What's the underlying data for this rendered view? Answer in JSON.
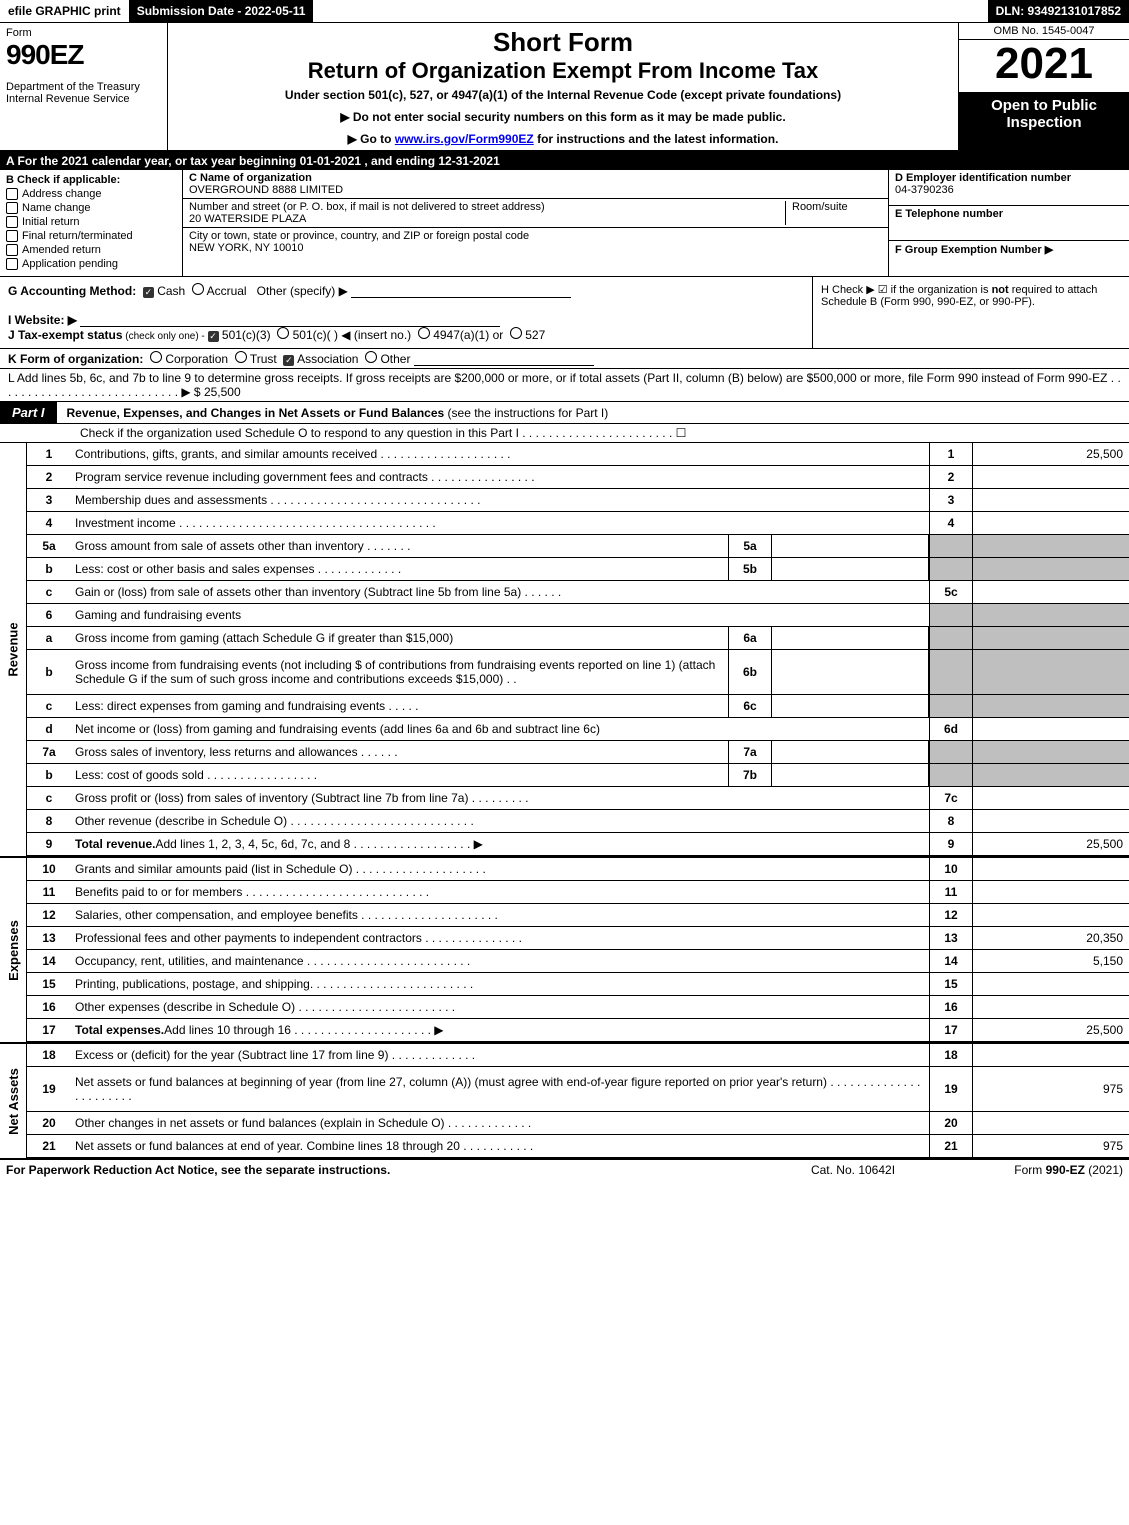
{
  "top_bar": {
    "efile": "efile GRAPHIC print",
    "submission_label": "Submission Date - 2022-05-11",
    "dln_label": "DLN: 93492131017852"
  },
  "header": {
    "form_word": "Form",
    "form_number": "990EZ",
    "dept": "Department of the Treasury\nInternal Revenue Service",
    "short_form": "Short Form",
    "title": "Return of Organization Exempt From Income Tax",
    "subtitle": "Under section 501(c), 527, or 4947(a)(1) of the Internal Revenue Code (except private foundations)",
    "note1": "▶ Do not enter social security numbers on this form as it may be made public.",
    "note2_pre": "▶ Go to ",
    "note2_link": "www.irs.gov/Form990EZ",
    "note2_post": " for instructions and the latest information.",
    "omb": "OMB No. 1545-0047",
    "year": "2021",
    "open": "Open to Public Inspection"
  },
  "row_a": "A  For the 2021 calendar year, or tax year beginning 01-01-2021 , and ending 12-31-2021",
  "section_b": {
    "label": "B  Check if applicable:",
    "items": [
      "Address change",
      "Name change",
      "Initial return",
      "Final return/terminated",
      "Amended return",
      "Application pending"
    ]
  },
  "section_c": {
    "name_label": "C Name of organization",
    "name": "OVERGROUND 8888 LIMITED",
    "addr_label": "Number and street (or P. O. box, if mail is not delivered to street address)",
    "addr": "20 WATERSIDE PLAZA",
    "room_label": "Room/suite",
    "city_label": "City or town, state or province, country, and ZIP or foreign postal code",
    "city": "NEW YORK, NY  10010"
  },
  "section_d": {
    "label": "D Employer identification number",
    "value": "04-3790236"
  },
  "section_e": {
    "label": "E Telephone number",
    "value": ""
  },
  "section_f": {
    "label": "F Group Exemption Number  ▶",
    "value": ""
  },
  "section_g": {
    "label": "G Accounting Method:",
    "cash": "Cash",
    "accrual": "Accrual",
    "other": "Other (specify) ▶"
  },
  "section_h": {
    "text1": "H  Check ▶ ☑ if the organization is ",
    "not": "not",
    "text2": " required to attach Schedule B (Form 990, 990-EZ, or 990-PF)."
  },
  "section_i": {
    "label": "I Website: ▶"
  },
  "section_j": {
    "label": "J Tax-exempt status",
    "sub": " (check only one) - ",
    "c3": "501(c)(3)",
    "c": "501(c)(  ) ◀ (insert no.)",
    "a4947": "4947(a)(1) or",
    "s527": "527"
  },
  "section_k": {
    "label": "K Form of organization:",
    "corp": "Corporation",
    "trust": "Trust",
    "assoc": "Association",
    "other": "Other"
  },
  "section_l": {
    "text": "L Add lines 5b, 6c, and 7b to line 9 to determine gross receipts. If gross receipts are $200,000 or more, or if total assets (Part II, column (B) below) are $500,000 or more, file Form 990 instead of Form 990-EZ",
    "dots": " . . . . . . . . . . . . . . . . . . . . . . . . . . . . ▶ $ ",
    "amount": "25,500"
  },
  "part1": {
    "tab": "Part I",
    "title": "Revenue, Expenses, and Changes in Net Assets or Fund Balances",
    "title_suffix": " (see the instructions for Part I)",
    "check_line": "Check if the organization used Schedule O to respond to any question in this Part I . . . . . . . . . . . . . . . . . . . . . . . ☐"
  },
  "revenue": {
    "side": "Revenue",
    "rows": [
      {
        "n": "1",
        "d": "Contributions, gifts, grants, and similar amounts received . . . . . . . . . . . . . . . . . . . .",
        "rn": "1",
        "rv": "25,500"
      },
      {
        "n": "2",
        "d": "Program service revenue including government fees and contracts . . . . . . . . . . . . . . . .",
        "rn": "2",
        "rv": ""
      },
      {
        "n": "3",
        "d": "Membership dues and assessments . . . . . . . . . . . . . . . . . . . . . . . . . . . . . . . .",
        "rn": "3",
        "rv": ""
      },
      {
        "n": "4",
        "d": "Investment income . . . . . . . . . . . . . . . . . . . . . . . . . . . . . . . . . . . . . . .",
        "rn": "4",
        "rv": ""
      },
      {
        "n": "5a",
        "d": "Gross amount from sale of assets other than inventory . . . . . . .",
        "sn": "5a",
        "sv": "",
        "grey": true
      },
      {
        "n": "b",
        "d": "Less: cost or other basis and sales expenses . . . . . . . . . . . . .",
        "sn": "5b",
        "sv": "",
        "grey": true
      },
      {
        "n": "c",
        "d": "Gain or (loss) from sale of assets other than inventory (Subtract line 5b from line 5a) . . . . . .",
        "rn": "5c",
        "rv": ""
      },
      {
        "n": "6",
        "d": "Gaming and fundraising events",
        "header": true,
        "grey": true
      },
      {
        "n": "a",
        "d": "Gross income from gaming (attach Schedule G if greater than $15,000)",
        "sn": "6a",
        "sv": "",
        "grey": true
      },
      {
        "n": "b",
        "d": "Gross income from fundraising events (not including $                 of contributions from fundraising events reported on line 1) (attach Schedule G if the sum of such gross income and contributions exceeds $15,000)   . .",
        "sn": "6b",
        "sv": "",
        "grey": true,
        "tall": true
      },
      {
        "n": "c",
        "d": "Less: direct expenses from gaming and fundraising events   . . . . .",
        "sn": "6c",
        "sv": "",
        "grey": true
      },
      {
        "n": "d",
        "d": "Net income or (loss) from gaming and fundraising events (add lines 6a and 6b and subtract line 6c)",
        "rn": "6d",
        "rv": ""
      },
      {
        "n": "7a",
        "d": "Gross sales of inventory, less returns and allowances . . . . . .",
        "sn": "7a",
        "sv": "",
        "grey": true
      },
      {
        "n": "b",
        "d": "Less: cost of goods sold       . . . . . . . . . . . . . . . . .",
        "sn": "7b",
        "sv": "",
        "grey": true
      },
      {
        "n": "c",
        "d": "Gross profit or (loss) from sales of inventory (Subtract line 7b from line 7a) . . . . . . . . .",
        "rn": "7c",
        "rv": ""
      },
      {
        "n": "8",
        "d": "Other revenue (describe in Schedule O) . . . . . . . . . . . . . . . . . . . . . . . . . . . .",
        "rn": "8",
        "rv": ""
      },
      {
        "n": "9",
        "d": "Total revenue. Add lines 1, 2, 3, 4, 5c, 6d, 7c, and 8  . . . . . . . . . . . . . . . . . . ▶",
        "rn": "9",
        "rv": "25,500",
        "bold": true
      }
    ]
  },
  "expenses": {
    "side": "Expenses",
    "rows": [
      {
        "n": "10",
        "d": "Grants and similar amounts paid (list in Schedule O) . . . . . . . . . . . . . . . . . . . .",
        "rn": "10",
        "rv": ""
      },
      {
        "n": "11",
        "d": "Benefits paid to or for members     . . . . . . . . . . . . . . . . . . . . . . . . . . . .",
        "rn": "11",
        "rv": ""
      },
      {
        "n": "12",
        "d": "Salaries, other compensation, and employee benefits . . . . . . . . . . . . . . . . . . . . .",
        "rn": "12",
        "rv": ""
      },
      {
        "n": "13",
        "d": "Professional fees and other payments to independent contractors . . . . . . . . . . . . . . .",
        "rn": "13",
        "rv": "20,350"
      },
      {
        "n": "14",
        "d": "Occupancy, rent, utilities, and maintenance . . . . . . . . . . . . . . . . . . . . . . . . .",
        "rn": "14",
        "rv": "5,150"
      },
      {
        "n": "15",
        "d": "Printing, publications, postage, and shipping. . . . . . . . . . . . . . . . . . . . . . . . .",
        "rn": "15",
        "rv": ""
      },
      {
        "n": "16",
        "d": "Other expenses (describe in Schedule O)     . . . . . . . . . . . . . . . . . . . . . . . .",
        "rn": "16",
        "rv": ""
      },
      {
        "n": "17",
        "d": "Total expenses. Add lines 10 through 16     . . . . . . . . . . . . . . . . . . . . . ▶",
        "rn": "17",
        "rv": "25,500",
        "bold": true
      }
    ]
  },
  "netassets": {
    "side": "Net Assets",
    "rows": [
      {
        "n": "18",
        "d": "Excess or (deficit) for the year (Subtract line 17 from line 9)       . . . . . . . . . . . . .",
        "rn": "18",
        "rv": ""
      },
      {
        "n": "19",
        "d": "Net assets or fund balances at beginning of year (from line 27, column (A)) (must agree with end-of-year figure reported on prior year's return) . . . . . . . . . . . . . . . . . . . . . . .",
        "rn": "19",
        "rv": "975",
        "tall": true
      },
      {
        "n": "20",
        "d": "Other changes in net assets or fund balances (explain in Schedule O) . . . . . . . . . . . . .",
        "rn": "20",
        "rv": ""
      },
      {
        "n": "21",
        "d": "Net assets or fund balances at end of year. Combine lines 18 through 20 . . . . . . . . . . .",
        "rn": "21",
        "rv": "975"
      }
    ]
  },
  "footer": {
    "left": "For Paperwork Reduction Act Notice, see the separate instructions.",
    "mid": "Cat. No. 10642I",
    "right_pre": "Form ",
    "right_bold": "990-EZ",
    "right_post": " (2021)"
  },
  "colors": {
    "black": "#000000",
    "grey": "#bfbfbf",
    "link": "#0000ee"
  }
}
